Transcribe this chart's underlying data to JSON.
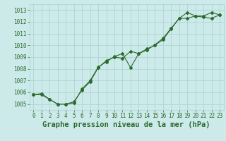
{
  "title": "Graphe pression niveau de la mer (hPa)",
  "line1_y": [
    1005.8,
    1005.9,
    1005.4,
    1005.0,
    1005.0,
    1005.2,
    1006.2,
    1006.9,
    1008.1,
    1008.7,
    1009.0,
    1008.9,
    1009.5,
    1009.3,
    1009.7,
    1010.0,
    1010.5,
    1011.4,
    1012.3,
    1012.8,
    1012.5,
    1012.5,
    1012.8,
    1012.6
  ],
  "line2_y": [
    1005.8,
    1005.8,
    1005.4,
    1005.0,
    1005.0,
    1005.1,
    1006.3,
    1007.0,
    1008.15,
    1008.6,
    1009.05,
    1009.3,
    1008.1,
    1009.3,
    1009.6,
    1010.05,
    1010.6,
    1011.45,
    1012.3,
    1012.3,
    1012.5,
    1012.4,
    1012.3,
    1012.6
  ],
  "x": [
    0,
    1,
    2,
    3,
    4,
    5,
    6,
    7,
    8,
    9,
    10,
    11,
    12,
    13,
    14,
    15,
    16,
    17,
    18,
    19,
    20,
    21,
    22,
    23
  ],
  "line_color": "#2d6a2d",
  "bg_color": "#cceaea",
  "grid_color": "#aacfcf",
  "text_color": "#2d6a2d",
  "ylim": [
    1004.5,
    1013.5
  ],
  "yticks": [
    1005,
    1006,
    1007,
    1008,
    1009,
    1010,
    1011,
    1012,
    1013
  ],
  "xlim": [
    -0.5,
    23.5
  ],
  "xticks": [
    0,
    1,
    2,
    3,
    4,
    5,
    6,
    7,
    8,
    9,
    10,
    11,
    12,
    13,
    14,
    15,
    16,
    17,
    18,
    19,
    20,
    21,
    22,
    23
  ],
  "tick_fontsize": 5.5,
  "title_fontsize": 7.5
}
